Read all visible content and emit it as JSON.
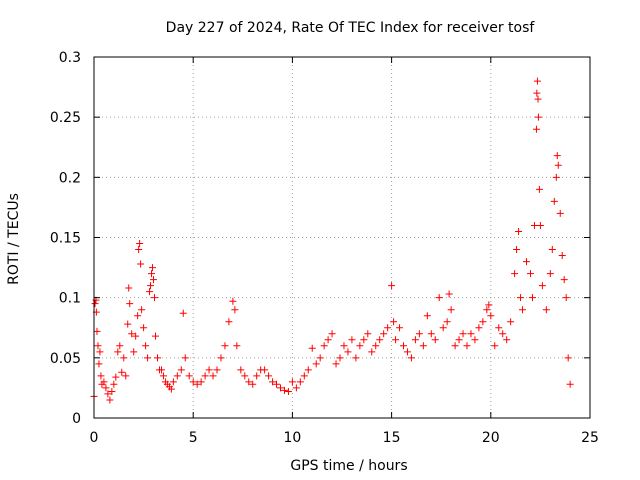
{
  "chart_data": {
    "type": "scatter",
    "title": "Day 227 of 2024, Rate Of TEC Index for receiver tosf",
    "xlabel": "GPS time / hours",
    "ylabel": "ROTI / TECUs",
    "xlim": [
      0,
      25
    ],
    "ylim": [
      0,
      0.3
    ],
    "x_ticks": [
      0,
      5,
      10,
      15,
      20,
      25
    ],
    "x_tick_labels": [
      "0",
      "5",
      "10",
      "15",
      "20",
      "25"
    ],
    "y_ticks": [
      0,
      0.05,
      0.1,
      0.15,
      0.2,
      0.25,
      0.3
    ],
    "y_tick_labels": [
      "0",
      "0.05",
      "0.1",
      "0.15",
      "0.2",
      "0.25",
      "0.3"
    ],
    "grid": true,
    "marker": "+",
    "series": [
      {
        "name": "ROTI",
        "color": "#ff0000",
        "points": [
          [
            0.0,
            0.018
          ],
          [
            0.05,
            0.095
          ],
          [
            0.1,
            0.098
          ],
          [
            0.12,
            0.088
          ],
          [
            0.15,
            0.072
          ],
          [
            0.2,
            0.06
          ],
          [
            0.25,
            0.045
          ],
          [
            0.3,
            0.055
          ],
          [
            0.35,
            0.035
          ],
          [
            0.4,
            0.028
          ],
          [
            0.5,
            0.03
          ],
          [
            0.6,
            0.025
          ],
          [
            0.7,
            0.02
          ],
          [
            0.8,
            0.015
          ],
          [
            0.9,
            0.022
          ],
          [
            1.0,
            0.028
          ],
          [
            1.1,
            0.034
          ],
          [
            1.2,
            0.055
          ],
          [
            1.3,
            0.06
          ],
          [
            1.4,
            0.038
          ],
          [
            1.5,
            0.05
          ],
          [
            1.6,
            0.035
          ],
          [
            1.7,
            0.078
          ],
          [
            1.75,
            0.108
          ],
          [
            1.8,
            0.095
          ],
          [
            1.9,
            0.07
          ],
          [
            2.0,
            0.055
          ],
          [
            2.1,
            0.068
          ],
          [
            2.2,
            0.085
          ],
          [
            2.25,
            0.14
          ],
          [
            2.3,
            0.145
          ],
          [
            2.35,
            0.128
          ],
          [
            2.4,
            0.09
          ],
          [
            2.5,
            0.075
          ],
          [
            2.6,
            0.06
          ],
          [
            2.7,
            0.05
          ],
          [
            2.8,
            0.105
          ],
          [
            2.85,
            0.11
          ],
          [
            2.9,
            0.12
          ],
          [
            2.95,
            0.125
          ],
          [
            3.0,
            0.115
          ],
          [
            3.05,
            0.1
          ],
          [
            3.1,
            0.068
          ],
          [
            3.2,
            0.05
          ],
          [
            3.3,
            0.04
          ],
          [
            3.4,
            0.04
          ],
          [
            3.5,
            0.035
          ],
          [
            3.6,
            0.03
          ],
          [
            3.7,
            0.028
          ],
          [
            3.8,
            0.026
          ],
          [
            3.9,
            0.024
          ],
          [
            4.0,
            0.03
          ],
          [
            4.2,
            0.035
          ],
          [
            4.4,
            0.04
          ],
          [
            4.5,
            0.087
          ],
          [
            4.6,
            0.05
          ],
          [
            4.8,
            0.035
          ],
          [
            5.0,
            0.03
          ],
          [
            5.2,
            0.028
          ],
          [
            5.4,
            0.03
          ],
          [
            5.6,
            0.035
          ],
          [
            5.8,
            0.04
          ],
          [
            6.0,
            0.035
          ],
          [
            6.2,
            0.04
          ],
          [
            6.4,
            0.05
          ],
          [
            6.6,
            0.06
          ],
          [
            6.8,
            0.08
          ],
          [
            7.0,
            0.097
          ],
          [
            7.1,
            0.09
          ],
          [
            7.2,
            0.06
          ],
          [
            7.4,
            0.04
          ],
          [
            7.6,
            0.035
          ],
          [
            7.8,
            0.03
          ],
          [
            8.0,
            0.028
          ],
          [
            8.2,
            0.035
          ],
          [
            8.4,
            0.04
          ],
          [
            8.6,
            0.04
          ],
          [
            8.8,
            0.035
          ],
          [
            9.0,
            0.03
          ],
          [
            9.2,
            0.028
          ],
          [
            9.4,
            0.025
          ],
          [
            9.6,
            0.023
          ],
          [
            9.8,
            0.022
          ],
          [
            10.0,
            0.03
          ],
          [
            10.2,
            0.025
          ],
          [
            10.4,
            0.03
          ],
          [
            10.6,
            0.035
          ],
          [
            10.8,
            0.04
          ],
          [
            11.0,
            0.058
          ],
          [
            11.2,
            0.045
          ],
          [
            11.4,
            0.05
          ],
          [
            11.6,
            0.06
          ],
          [
            11.8,
            0.065
          ],
          [
            12.0,
            0.07
          ],
          [
            12.2,
            0.045
          ],
          [
            12.4,
            0.05
          ],
          [
            12.6,
            0.06
          ],
          [
            12.8,
            0.055
          ],
          [
            13.0,
            0.065
          ],
          [
            13.2,
            0.05
          ],
          [
            13.4,
            0.06
          ],
          [
            13.6,
            0.065
          ],
          [
            13.8,
            0.07
          ],
          [
            14.0,
            0.055
          ],
          [
            14.2,
            0.06
          ],
          [
            14.4,
            0.065
          ],
          [
            14.6,
            0.07
          ],
          [
            14.8,
            0.075
          ],
          [
            15.0,
            0.11
          ],
          [
            15.1,
            0.08
          ],
          [
            15.2,
            0.065
          ],
          [
            15.4,
            0.075
          ],
          [
            15.6,
            0.06
          ],
          [
            15.8,
            0.055
          ],
          [
            16.0,
            0.05
          ],
          [
            16.2,
            0.065
          ],
          [
            16.4,
            0.07
          ],
          [
            16.6,
            0.06
          ],
          [
            16.8,
            0.085
          ],
          [
            17.0,
            0.07
          ],
          [
            17.2,
            0.065
          ],
          [
            17.4,
            0.1
          ],
          [
            17.6,
            0.075
          ],
          [
            17.8,
            0.08
          ],
          [
            17.9,
            0.103
          ],
          [
            18.0,
            0.09
          ],
          [
            18.2,
            0.06
          ],
          [
            18.4,
            0.065
          ],
          [
            18.6,
            0.07
          ],
          [
            18.8,
            0.06
          ],
          [
            19.0,
            0.07
          ],
          [
            19.2,
            0.065
          ],
          [
            19.4,
            0.075
          ],
          [
            19.6,
            0.08
          ],
          [
            19.8,
            0.09
          ],
          [
            19.9,
            0.094
          ],
          [
            20.0,
            0.085
          ],
          [
            20.2,
            0.06
          ],
          [
            20.4,
            0.075
          ],
          [
            20.6,
            0.07
          ],
          [
            20.8,
            0.065
          ],
          [
            21.0,
            0.08
          ],
          [
            21.2,
            0.12
          ],
          [
            21.3,
            0.14
          ],
          [
            21.4,
            0.155
          ],
          [
            21.5,
            0.1
          ],
          [
            21.6,
            0.09
          ],
          [
            21.8,
            0.13
          ],
          [
            22.0,
            0.12
          ],
          [
            22.1,
            0.1
          ],
          [
            22.2,
            0.16
          ],
          [
            22.3,
            0.24
          ],
          [
            22.32,
            0.27
          ],
          [
            22.35,
            0.28
          ],
          [
            22.38,
            0.265
          ],
          [
            22.4,
            0.25
          ],
          [
            22.45,
            0.19
          ],
          [
            22.5,
            0.16
          ],
          [
            22.6,
            0.11
          ],
          [
            22.8,
            0.09
          ],
          [
            23.0,
            0.12
          ],
          [
            23.1,
            0.14
          ],
          [
            23.2,
            0.18
          ],
          [
            23.3,
            0.2
          ],
          [
            23.35,
            0.218
          ],
          [
            23.4,
            0.21
          ],
          [
            23.5,
            0.17
          ],
          [
            23.6,
            0.135
          ],
          [
            23.7,
            0.115
          ],
          [
            23.8,
            0.1
          ],
          [
            23.9,
            0.05
          ],
          [
            24.0,
            0.028
          ]
        ]
      }
    ]
  }
}
